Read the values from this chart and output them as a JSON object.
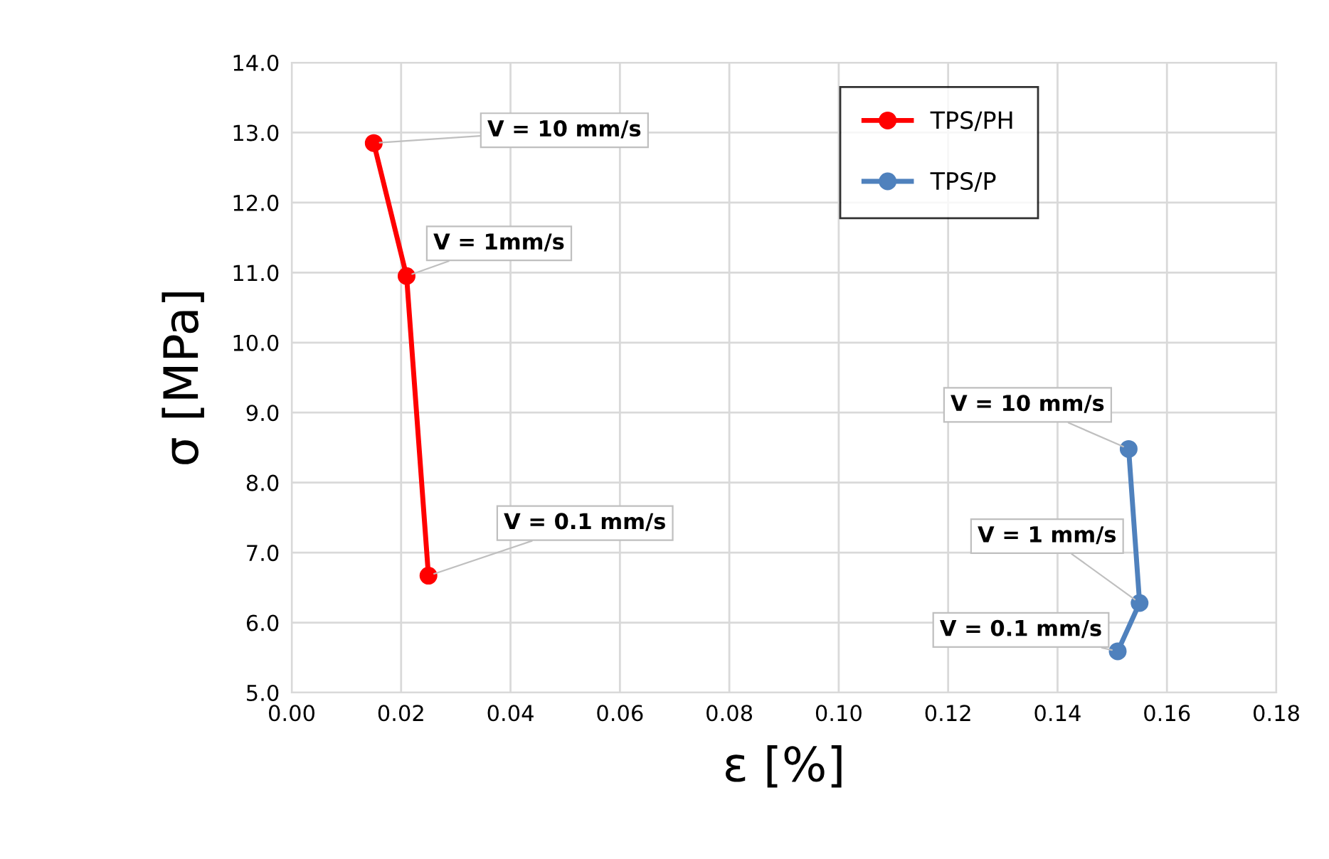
{
  "chart_data": {
    "type": "line",
    "xlabel": "ε [%]",
    "ylabel": "σ [MPa]",
    "series": [
      {
        "name": "TPS/PH",
        "color": "#ff0000",
        "x": [
          0.015,
          0.021,
          0.025
        ],
        "values": [
          12.85,
          10.95,
          6.67
        ]
      },
      {
        "name": "TPS/P",
        "color": "#4f81bd",
        "x": [
          0.153,
          0.155,
          0.151
        ],
        "values": [
          8.48,
          6.28,
          5.59
        ]
      }
    ],
    "annotations": [
      {
        "text": "V = 10 mm/s",
        "x": 0.015,
        "y": 12.85
      },
      {
        "text": "V = 1mm/s",
        "x": 0.021,
        "y": 10.95
      },
      {
        "text": "V = 0.1 mm/s",
        "x": 0.025,
        "y": 6.67
      },
      {
        "text": "V = 10 mm/s",
        "x": 0.153,
        "y": 8.48
      },
      {
        "text": "V = 1 mm/s",
        "x": 0.155,
        "y": 6.28
      },
      {
        "text": "V = 0.1 mm/s",
        "x": 0.151,
        "y": 5.59
      }
    ],
    "xlim": [
      0.0,
      0.18
    ],
    "xticks": [
      {
        "value": 0.0,
        "label": "0.00"
      },
      {
        "value": 0.02,
        "label": "0.02"
      },
      {
        "value": 0.04,
        "label": "0.04"
      },
      {
        "value": 0.06,
        "label": "0.06"
      },
      {
        "value": 0.08,
        "label": "0.08"
      },
      {
        "value": 0.1,
        "label": "0.10"
      },
      {
        "value": 0.12,
        "label": "0.12"
      },
      {
        "value": 0.14,
        "label": "0.14"
      },
      {
        "value": 0.16,
        "label": "0.16"
      },
      {
        "value": 0.18,
        "label": "0.18"
      }
    ],
    "ylim": [
      5.0,
      14.0
    ],
    "yticks": [
      {
        "value": 5,
        "label": "5.0"
      },
      {
        "value": 6,
        "label": "6.0"
      },
      {
        "value": 7,
        "label": "7.0"
      },
      {
        "value": 8,
        "label": "8.0"
      },
      {
        "value": 9,
        "label": "9.0"
      },
      {
        "value": 10,
        "label": "10.0"
      },
      {
        "value": 11,
        "label": "11.0"
      },
      {
        "value": 12,
        "label": "12.0"
      },
      {
        "value": 13,
        "label": "13.0"
      },
      {
        "value": 14,
        "label": "14.0"
      }
    ],
    "grid": true,
    "legend": "top right",
    "marker": "circle",
    "line_style": "solid"
  }
}
